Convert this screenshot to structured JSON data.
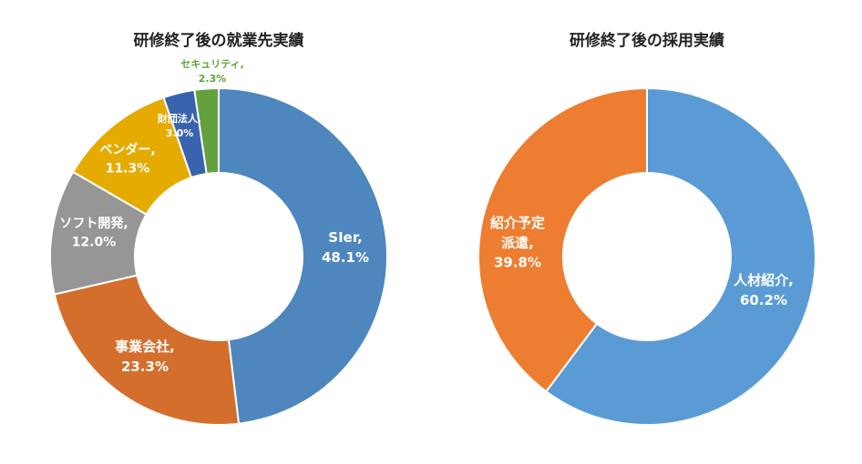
{
  "colors": {
    "sier": "#4e86be",
    "jigyou": "#d46e2c",
    "soft": "#969696",
    "vendor": "#e5ab00",
    "zaidan": "#3a63ae",
    "security": "#63a13f",
    "jinzai": "#5b9bd5",
    "shoukai": "#ed7d31",
    "label_white": "#ffffff",
    "label_security": "#5fa33a"
  },
  "chart_data": [
    {
      "type": "pie",
      "title": "研修終了後の就業先実績",
      "donut": true,
      "slices": [
        {
          "label": "SIer,",
          "value": 48.1,
          "value_label": "48.1%",
          "color_key": "sier"
        },
        {
          "label": "事業会社,",
          "value": 23.3,
          "value_label": "23.3%",
          "color_key": "jigyou"
        },
        {
          "label": "ソフト開発,",
          "value": 12.0,
          "value_label": "12.0%",
          "color_key": "soft"
        },
        {
          "label": "ベンダー,",
          "value": 11.3,
          "value_label": "11.3%",
          "color_key": "vendor"
        },
        {
          "label": "財団法人,",
          "value": 3.0,
          "value_label": "3.0%",
          "color_key": "zaidan"
        },
        {
          "label": "セキュリティ,",
          "value": 2.3,
          "value_label": "2.3%",
          "color_key": "security"
        }
      ]
    },
    {
      "type": "pie",
      "title": "研修終了後の採用実績",
      "donut": true,
      "slices": [
        {
          "label": "人材紹介,",
          "value": 60.2,
          "value_label": "60.2%",
          "color_key": "jinzai"
        },
        {
          "label": "紹介予定派遣,",
          "value": 39.8,
          "value_label": "39.8%",
          "color_key": "shoukai"
        }
      ]
    }
  ]
}
